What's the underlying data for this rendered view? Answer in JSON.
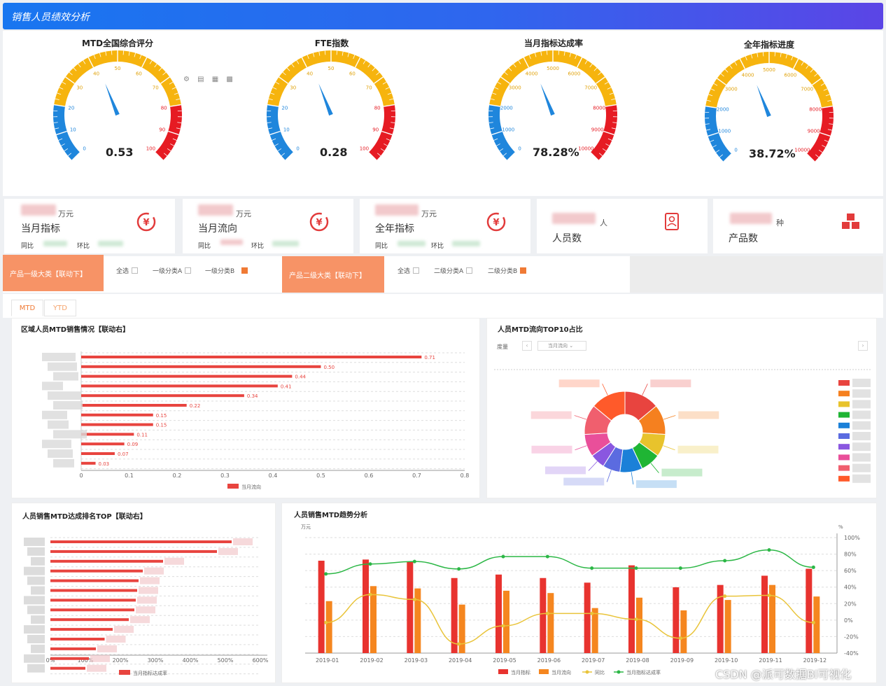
{
  "header": {
    "title": "销售人员绩效分析"
  },
  "gauges": [
    {
      "title": "MTD全国综合评分",
      "value": 0.53,
      "display": "0.53",
      "max": 100,
      "ticks": [
        "0",
        "10",
        "20",
        "30",
        "40",
        "50",
        "60",
        "70",
        "80",
        "90",
        "100"
      ]
    },
    {
      "title": "FTE指数",
      "value": 0.28,
      "display": "0.28",
      "max": 100,
      "ticks": [
        "0",
        "10",
        "20",
        "30",
        "40",
        "50",
        "60",
        "70",
        "80",
        "90",
        "100"
      ]
    },
    {
      "title": "当月指标达成率",
      "value": 78.28,
      "display": "78.28%",
      "max": 10000,
      "ticks": [
        "0",
        "1000",
        "2000",
        "3000",
        "4000",
        "5000",
        "6000",
        "7000",
        "8000",
        "9000",
        "10000"
      ]
    },
    {
      "title": "全年指标进度",
      "value": 38.72,
      "display": "38.72%",
      "max": 10000,
      "ticks": [
        "0",
        "1000",
        "2000",
        "3000",
        "4000",
        "5000",
        "6000",
        "7000",
        "8000",
        "9000",
        "10000"
      ]
    }
  ],
  "toolbar_glyphs": "⚙ ▤ ▦ ▩",
  "kpis": [
    {
      "unit": "万元",
      "label": "当月指标",
      "yoy": "同比",
      "mom": "环比",
      "icon": "yen-circle-icon",
      "glyph": "¥"
    },
    {
      "unit": "万元",
      "label": "当月流向",
      "yoy": "同比",
      "mom": "环比",
      "icon": "yen-circle-icon",
      "glyph": "¥"
    },
    {
      "unit": "万元",
      "label": "全年指标",
      "yoy": "同比",
      "mom": "环比",
      "icon": "yen-circle-icon",
      "glyph": "¥"
    },
    {
      "unit": "人",
      "label": "人员数",
      "icon": "person-card-icon",
      "glyph": "▣"
    },
    {
      "unit": "种",
      "label": "产品数",
      "icon": "cubes-icon",
      "glyph": "❖"
    }
  ],
  "filters": {
    "f1": {
      "tag": "产品一级大类【联动下】",
      "opts": [
        "全选",
        "一级分类A",
        "一级分类B"
      ],
      "checked": [
        false,
        false,
        true
      ]
    },
    "f2": {
      "tag": "产品二级大类【联动下】",
      "opts": [
        "全选",
        "二级分类A",
        "二级分类B"
      ],
      "checked": [
        false,
        false,
        true
      ]
    }
  },
  "tabs": [
    "MTD",
    "YTD"
  ],
  "bar1": {
    "title": "区域人员MTD销售情况【联动右】",
    "legend": "当月流向",
    "color": "#e8443f"
  },
  "pie": {
    "title": "人员MTD流向TOP10占比",
    "measure_label": "度量",
    "dropdown": "当月流向",
    "colors": [
      "#e8443f",
      "#f5801f",
      "#e8c32c",
      "#1fb534",
      "#1b80d8",
      "#5b6be0",
      "#8a57e0",
      "#e94f9a",
      "#f05f6e",
      "#ff5a2a"
    ]
  },
  "bar2": {
    "title": "人员销售MTD达成排名TOP【联动右】",
    "legend": "当月指标达成率",
    "color": "#e8443f"
  },
  "combo": {
    "title": "人员销售MTD趋势分析",
    "left_unit": "万元",
    "right_unit": "%",
    "legend": [
      "当月指标",
      "当月流向",
      "同比",
      "当月指标达成率"
    ]
  },
  "chart_data": [
    {
      "type": "bar",
      "orientation": "horizontal",
      "title": "区域人员MTD销售情况【联动右】",
      "series": [
        {
          "name": "当月流向",
          "values": [
            0.71,
            0.5,
            0.44,
            0.41,
            0.34,
            0.22,
            0.15,
            0.15,
            0.11,
            0.09,
            0.07,
            0.03
          ]
        }
      ],
      "data_labels": [
        "0.71",
        "0.50",
        "0.44",
        "0.41",
        "0.34",
        "0.22",
        "0.15",
        "0.15",
        "0.11",
        "0.09",
        "0.07",
        "0.03"
      ],
      "xlim": [
        0,
        0.8
      ],
      "xticks": [
        "0",
        "0.1",
        "0.2",
        "0.3",
        "0.4",
        "0.5",
        "0.6",
        "0.7",
        "0.8"
      ]
    },
    {
      "type": "pie",
      "title": "人员MTD流向TOP10占比",
      "values": [
        14,
        12,
        9,
        8,
        9,
        7,
        6,
        9,
        12,
        14
      ]
    },
    {
      "type": "bar",
      "orientation": "horizontal",
      "title": "人员销售MTD达成排名TOP【联动右】",
      "series": [
        {
          "name": "当月指标达成率",
          "values": [
            518,
            476,
            322,
            264,
            252,
            248,
            244,
            240,
            224,
            178,
            155,
            130,
            110,
            100
          ]
        }
      ],
      "xlim": [
        0,
        600
      ],
      "xticks": [
        "0%",
        "100%",
        "200%",
        "300%",
        "400%",
        "500%",
        "600%"
      ]
    },
    {
      "type": "bar",
      "title": "人员销售MTD趋势分析",
      "categories": [
        "2019-01",
        "2019-02",
        "2019-03",
        "2019-04",
        "2019-05",
        "2019-06",
        "2019-07",
        "2019-08",
        "2019-09",
        "2019-10",
        "2019-11",
        "2019-12"
      ],
      "series": [
        {
          "name": "当月指标",
          "values": [
            80,
            81,
            79,
            65,
            68,
            65,
            61,
            76,
            57,
            59,
            67,
            73
          ]
        },
        {
          "name": "当月流向",
          "values": [
            45,
            58,
            56,
            42,
            54,
            52,
            39,
            48,
            37,
            46,
            59,
            49
          ]
        },
        {
          "name": "同比",
          "axis": "right",
          "values": [
            -3,
            31,
            25,
            -29,
            -7,
            8,
            8,
            1,
            -22,
            29,
            30,
            -3
          ]
        },
        {
          "name": "当月指标达成率",
          "axis": "right",
          "values": [
            56,
            68,
            71,
            62,
            77,
            77,
            63,
            63,
            63,
            72,
            85,
            64
          ]
        }
      ],
      "yticks_right": [
        "100%",
        "80%",
        "60%",
        "40%",
        "20%",
        "0%",
        "-20%",
        "-40%"
      ]
    }
  ],
  "watermark": "CSDN @派可数据BI可视化"
}
